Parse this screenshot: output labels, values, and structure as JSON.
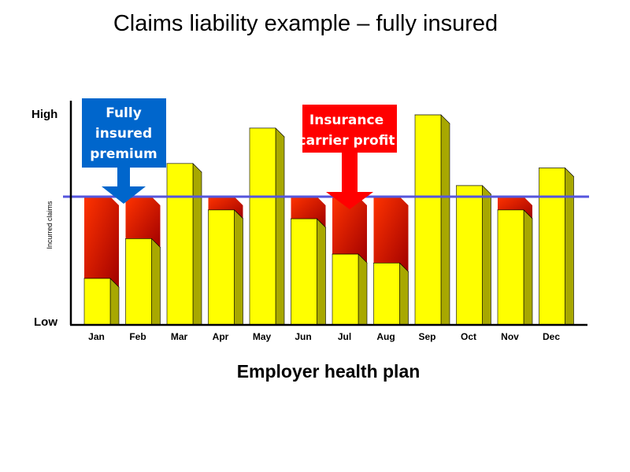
{
  "title": "Claims liability example – fully insured",
  "chart_data": {
    "type": "bar",
    "categories": [
      "Jan",
      "Feb",
      "Mar",
      "Apr",
      "May",
      "Jun",
      "Jul",
      "Aug",
      "Sep",
      "Oct",
      "Nov",
      "Dec"
    ],
    "series": [
      {
        "values": [
          0.21,
          0.39,
          0.73,
          0.52,
          0.89,
          0.48,
          0.32,
          0.28,
          0.95,
          0.63,
          0.52,
          0.71
        ]
      }
    ],
    "premium_level": 0.58,
    "ylim": [
      0,
      1
    ],
    "ylabel": "Incurred claims",
    "y_tick_high": "High",
    "y_tick_low": "Low",
    "xlabel": "Employer health plan",
    "callouts": {
      "premium": {
        "lines": [
          "Fully",
          "insured",
          "premium"
        ]
      },
      "profit": {
        "lines": [
          "Insurance",
          "carrier profit"
        ]
      }
    },
    "colors": {
      "bar": "#ffff00",
      "bar_side": "#a8a800",
      "profit_light": "#ff3300",
      "profit_dark": "#a00000",
      "premium_line": "#5555dd",
      "premium_callout": "#0066cc",
      "profit_callout": "#ff0000"
    }
  }
}
